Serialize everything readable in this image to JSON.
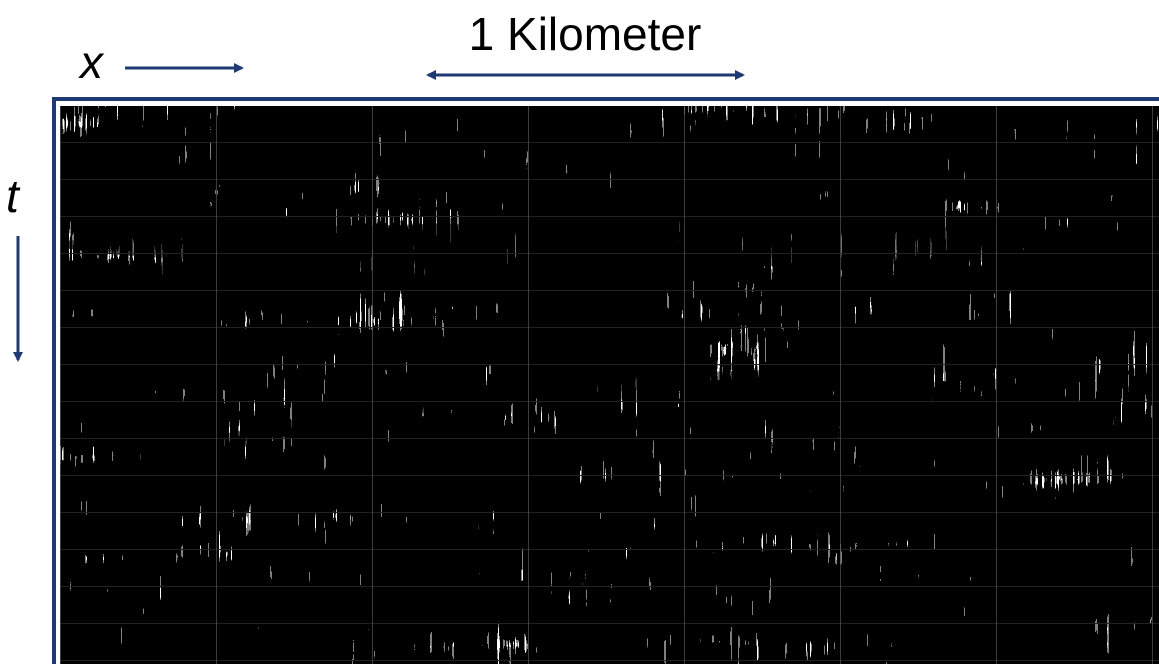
{
  "labels": {
    "x_axis": "x",
    "t_axis": "t",
    "scale": "1 Kilometer"
  }
}
